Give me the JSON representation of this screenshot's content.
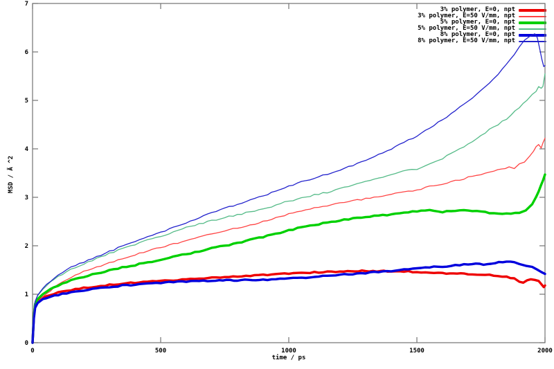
{
  "chart_data": {
    "type": "line",
    "title": "",
    "xlabel": "time / ps",
    "ylabel": "MSD / Ä ^2",
    "xlim": [
      0,
      2000
    ],
    "ylim": [
      0,
      7
    ],
    "xticks": [
      0,
      500,
      1000,
      1500,
      2000
    ],
    "yticks": [
      0,
      1,
      2,
      3,
      4,
      5,
      6,
      7
    ],
    "grid": false,
    "legend_position": "top-right",
    "axis_color": "#737373",
    "text_color": "#000000",
    "series": [
      {
        "name": "3% polymer, E=0, npt",
        "color": "#ee0000",
        "width": 3.4,
        "points": [
          [
            0,
            0
          ],
          [
            5,
            0.55
          ],
          [
            10,
            0.78
          ],
          [
            20,
            0.86
          ],
          [
            40,
            0.93
          ],
          [
            70,
            0.98
          ],
          [
            100,
            1.03
          ],
          [
            150,
            1.09
          ],
          [
            200,
            1.13
          ],
          [
            250,
            1.16
          ],
          [
            300,
            1.19
          ],
          [
            350,
            1.22
          ],
          [
            400,
            1.24
          ],
          [
            450,
            1.26
          ],
          [
            500,
            1.28
          ],
          [
            550,
            1.29
          ],
          [
            600,
            1.31
          ],
          [
            650,
            1.32
          ],
          [
            700,
            1.34
          ],
          [
            750,
            1.35
          ],
          [
            800,
            1.37
          ],
          [
            850,
            1.38
          ],
          [
            900,
            1.4
          ],
          [
            950,
            1.41
          ],
          [
            1000,
            1.43
          ],
          [
            1050,
            1.44
          ],
          [
            1100,
            1.45
          ],
          [
            1150,
            1.46
          ],
          [
            1200,
            1.47
          ],
          [
            1300,
            1.48
          ],
          [
            1400,
            1.48
          ],
          [
            1450,
            1.47
          ],
          [
            1500,
            1.46
          ],
          [
            1550,
            1.44
          ],
          [
            1600,
            1.43
          ],
          [
            1700,
            1.42
          ],
          [
            1750,
            1.41
          ],
          [
            1800,
            1.39
          ],
          [
            1850,
            1.36
          ],
          [
            1880,
            1.32
          ],
          [
            1900,
            1.27
          ],
          [
            1915,
            1.24
          ],
          [
            1930,
            1.28
          ],
          [
            1945,
            1.31
          ],
          [
            1960,
            1.29
          ],
          [
            1975,
            1.27
          ],
          [
            1985,
            1.21
          ],
          [
            1995,
            1.15
          ],
          [
            2000,
            1.18
          ]
        ]
      },
      {
        "name": "3% polymer, E=50 V/mm, npt",
        "color": "#ff4444",
        "width": 1.3,
        "points": [
          [
            0,
            0
          ],
          [
            5,
            0.5
          ],
          [
            10,
            0.72
          ],
          [
            20,
            0.84
          ],
          [
            40,
            0.95
          ],
          [
            70,
            1.08
          ],
          [
            100,
            1.2
          ],
          [
            150,
            1.35
          ],
          [
            200,
            1.47
          ],
          [
            250,
            1.56
          ],
          [
            300,
            1.65
          ],
          [
            350,
            1.74
          ],
          [
            400,
            1.82
          ],
          [
            450,
            1.9
          ],
          [
            500,
            1.97
          ],
          [
            550,
            2.04
          ],
          [
            600,
            2.11
          ],
          [
            650,
            2.18
          ],
          [
            700,
            2.25
          ],
          [
            750,
            2.31
          ],
          [
            800,
            2.37
          ],
          [
            850,
            2.43
          ],
          [
            900,
            2.5
          ],
          [
            950,
            2.58
          ],
          [
            1000,
            2.65
          ],
          [
            1050,
            2.72
          ],
          [
            1100,
            2.78
          ],
          [
            1150,
            2.83
          ],
          [
            1200,
            2.88
          ],
          [
            1250,
            2.93
          ],
          [
            1300,
            2.97
          ],
          [
            1350,
            3.02
          ],
          [
            1400,
            3.07
          ],
          [
            1450,
            3.11
          ],
          [
            1500,
            3.15
          ],
          [
            1550,
            3.22
          ],
          [
            1600,
            3.28
          ],
          [
            1650,
            3.34
          ],
          [
            1700,
            3.41
          ],
          [
            1750,
            3.48
          ],
          [
            1800,
            3.55
          ],
          [
            1830,
            3.58
          ],
          [
            1860,
            3.62
          ],
          [
            1880,
            3.59
          ],
          [
            1900,
            3.68
          ],
          [
            1920,
            3.72
          ],
          [
            1940,
            3.85
          ],
          [
            1955,
            3.95
          ],
          [
            1965,
            4.05
          ],
          [
            1975,
            4.1
          ],
          [
            1985,
            4.02
          ],
          [
            1992,
            4.12
          ],
          [
            2000,
            4.22
          ]
        ]
      },
      {
        "name": "5% polymer, E=0, npt",
        "color": "#00d000",
        "width": 3.4,
        "points": [
          [
            0,
            0
          ],
          [
            5,
            0.55
          ],
          [
            10,
            0.8
          ],
          [
            20,
            0.9
          ],
          [
            40,
            1.0
          ],
          [
            70,
            1.1
          ],
          [
            100,
            1.18
          ],
          [
            150,
            1.28
          ],
          [
            200,
            1.36
          ],
          [
            250,
            1.43
          ],
          [
            300,
            1.49
          ],
          [
            350,
            1.55
          ],
          [
            400,
            1.6
          ],
          [
            450,
            1.66
          ],
          [
            500,
            1.71
          ],
          [
            550,
            1.77
          ],
          [
            600,
            1.83
          ],
          [
            650,
            1.89
          ],
          [
            700,
            1.95
          ],
          [
            750,
            2.0
          ],
          [
            800,
            2.06
          ],
          [
            850,
            2.12
          ],
          [
            900,
            2.18
          ],
          [
            950,
            2.25
          ],
          [
            1000,
            2.32
          ],
          [
            1050,
            2.38
          ],
          [
            1100,
            2.43
          ],
          [
            1150,
            2.48
          ],
          [
            1200,
            2.52
          ],
          [
            1250,
            2.56
          ],
          [
            1300,
            2.59
          ],
          [
            1350,
            2.62
          ],
          [
            1400,
            2.65
          ],
          [
            1450,
            2.68
          ],
          [
            1500,
            2.71
          ],
          [
            1550,
            2.73
          ],
          [
            1600,
            2.7
          ],
          [
            1650,
            2.72
          ],
          [
            1700,
            2.74
          ],
          [
            1750,
            2.7
          ],
          [
            1800,
            2.67
          ],
          [
            1850,
            2.66
          ],
          [
            1900,
            2.68
          ],
          [
            1925,
            2.72
          ],
          [
            1950,
            2.85
          ],
          [
            1965,
            3.0
          ],
          [
            1975,
            3.12
          ],
          [
            1985,
            3.25
          ],
          [
            1992,
            3.35
          ],
          [
            2000,
            3.47
          ]
        ]
      },
      {
        "name": "5% polymer, E=50 V/mm, npt",
        "color": "#55bb88",
        "width": 1.3,
        "points": [
          [
            0,
            0
          ],
          [
            5,
            0.6
          ],
          [
            10,
            0.85
          ],
          [
            20,
            0.97
          ],
          [
            40,
            1.1
          ],
          [
            70,
            1.25
          ],
          [
            100,
            1.37
          ],
          [
            150,
            1.52
          ],
          [
            200,
            1.63
          ],
          [
            250,
            1.74
          ],
          [
            300,
            1.84
          ],
          [
            350,
            1.94
          ],
          [
            400,
            2.03
          ],
          [
            450,
            2.12
          ],
          [
            500,
            2.2
          ],
          [
            550,
            2.29
          ],
          [
            600,
            2.38
          ],
          [
            650,
            2.45
          ],
          [
            700,
            2.52
          ],
          [
            750,
            2.58
          ],
          [
            800,
            2.64
          ],
          [
            850,
            2.7
          ],
          [
            900,
            2.76
          ],
          [
            950,
            2.84
          ],
          [
            1000,
            2.92
          ],
          [
            1050,
            2.99
          ],
          [
            1100,
            3.05
          ],
          [
            1150,
            3.1
          ],
          [
            1200,
            3.17
          ],
          [
            1250,
            3.25
          ],
          [
            1300,
            3.32
          ],
          [
            1350,
            3.4
          ],
          [
            1400,
            3.48
          ],
          [
            1430,
            3.52
          ],
          [
            1460,
            3.55
          ],
          [
            1500,
            3.58
          ],
          [
            1550,
            3.68
          ],
          [
            1600,
            3.8
          ],
          [
            1650,
            3.95
          ],
          [
            1700,
            4.1
          ],
          [
            1750,
            4.28
          ],
          [
            1800,
            4.45
          ],
          [
            1850,
            4.62
          ],
          [
            1900,
            4.85
          ],
          [
            1930,
            5.0
          ],
          [
            1950,
            5.12
          ],
          [
            1965,
            5.2
          ],
          [
            1975,
            5.28
          ],
          [
            1985,
            5.25
          ],
          [
            1992,
            5.3
          ],
          [
            2000,
            5.55
          ]
        ]
      },
      {
        "name": "8% polymer, E=0, npt",
        "color": "#0000dd",
        "width": 3.4,
        "points": [
          [
            0,
            0
          ],
          [
            5,
            0.5
          ],
          [
            10,
            0.72
          ],
          [
            20,
            0.82
          ],
          [
            40,
            0.9
          ],
          [
            70,
            0.95
          ],
          [
            100,
            0.99
          ],
          [
            150,
            1.04
          ],
          [
            200,
            1.08
          ],
          [
            250,
            1.12
          ],
          [
            300,
            1.15
          ],
          [
            350,
            1.18
          ],
          [
            400,
            1.2
          ],
          [
            450,
            1.22
          ],
          [
            500,
            1.24
          ],
          [
            550,
            1.25
          ],
          [
            600,
            1.26
          ],
          [
            650,
            1.27
          ],
          [
            700,
            1.28
          ],
          [
            800,
            1.29
          ],
          [
            900,
            1.3
          ],
          [
            950,
            1.31
          ],
          [
            1000,
            1.32
          ],
          [
            1050,
            1.34
          ],
          [
            1100,
            1.36
          ],
          [
            1150,
            1.38
          ],
          [
            1200,
            1.4
          ],
          [
            1250,
            1.42
          ],
          [
            1300,
            1.44
          ],
          [
            1350,
            1.46
          ],
          [
            1400,
            1.48
          ],
          [
            1450,
            1.51
          ],
          [
            1500,
            1.54
          ],
          [
            1550,
            1.56
          ],
          [
            1600,
            1.57
          ],
          [
            1650,
            1.6
          ],
          [
            1700,
            1.62
          ],
          [
            1730,
            1.63
          ],
          [
            1760,
            1.62
          ],
          [
            1790,
            1.64
          ],
          [
            1820,
            1.66
          ],
          [
            1850,
            1.67
          ],
          [
            1880,
            1.65
          ],
          [
            1900,
            1.62
          ],
          [
            1925,
            1.6
          ],
          [
            1950,
            1.57
          ],
          [
            1970,
            1.5
          ],
          [
            1985,
            1.45
          ],
          [
            2000,
            1.42
          ]
        ]
      },
      {
        "name": "8% polymer, E=50 V/mm, npt",
        "color": "#2222cc",
        "width": 1.3,
        "points": [
          [
            0,
            0
          ],
          [
            5,
            0.6
          ],
          [
            10,
            0.85
          ],
          [
            20,
            0.98
          ],
          [
            40,
            1.12
          ],
          [
            70,
            1.27
          ],
          [
            100,
            1.4
          ],
          [
            150,
            1.55
          ],
          [
            200,
            1.67
          ],
          [
            250,
            1.78
          ],
          [
            300,
            1.88
          ],
          [
            350,
            1.99
          ],
          [
            400,
            2.09
          ],
          [
            450,
            2.19
          ],
          [
            500,
            2.28
          ],
          [
            550,
            2.38
          ],
          [
            600,
            2.48
          ],
          [
            650,
            2.58
          ],
          [
            700,
            2.68
          ],
          [
            750,
            2.77
          ],
          [
            800,
            2.85
          ],
          [
            850,
            2.94
          ],
          [
            900,
            3.03
          ],
          [
            950,
            3.13
          ],
          [
            1000,
            3.22
          ],
          [
            1050,
            3.32
          ],
          [
            1100,
            3.4
          ],
          [
            1150,
            3.48
          ],
          [
            1200,
            3.56
          ],
          [
            1250,
            3.66
          ],
          [
            1300,
            3.76
          ],
          [
            1350,
            3.88
          ],
          [
            1400,
            4.0
          ],
          [
            1450,
            4.13
          ],
          [
            1500,
            4.27
          ],
          [
            1550,
            4.42
          ],
          [
            1600,
            4.6
          ],
          [
            1650,
            4.78
          ],
          [
            1700,
            4.98
          ],
          [
            1750,
            5.2
          ],
          [
            1800,
            5.45
          ],
          [
            1850,
            5.75
          ],
          [
            1880,
            5.95
          ],
          [
            1900,
            6.1
          ],
          [
            1920,
            6.25
          ],
          [
            1940,
            6.33
          ],
          [
            1960,
            6.36
          ],
          [
            1970,
            6.3
          ],
          [
            1980,
            6.05
          ],
          [
            1988,
            5.85
          ],
          [
            1995,
            5.7
          ],
          [
            2000,
            5.72
          ]
        ]
      }
    ]
  }
}
